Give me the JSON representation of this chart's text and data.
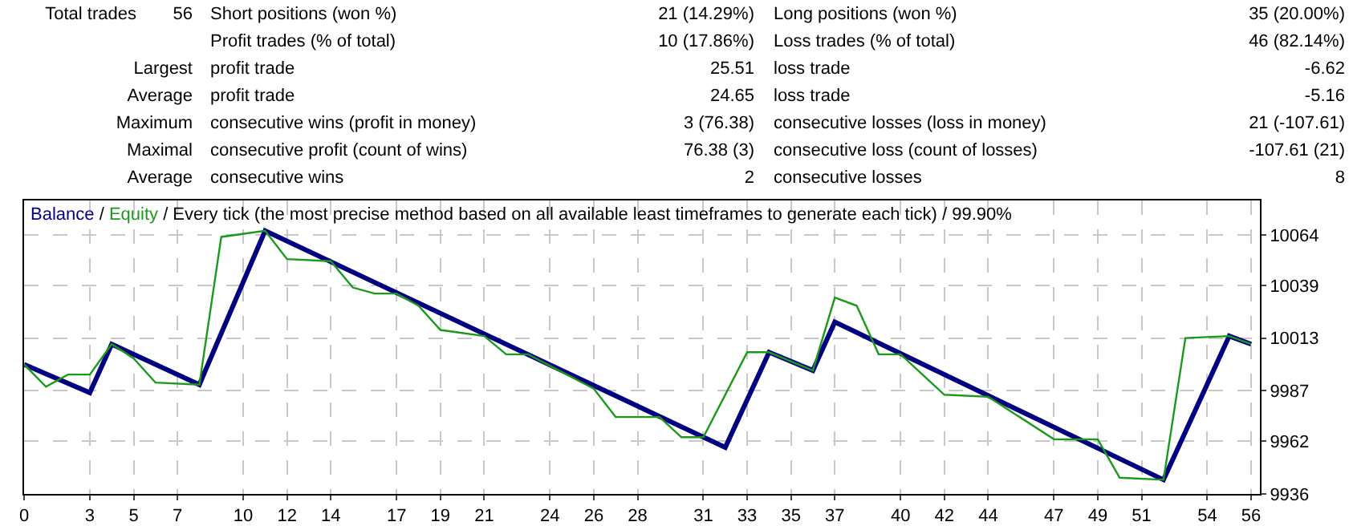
{
  "chart_data": {
    "type": "line",
    "title": "Every tick (the most precise method based on all available least timeframes to generate each tick) / 99.90%",
    "annotations": [
      "Total trades",
      "56",
      "Short positions (won %)",
      "21 (14.29%)",
      "Long positions (won %)",
      "35 (20.00%)",
      "Profit trades (% of total)",
      "10 (17.86%)",
      "Loss trades (% of total)",
      "46 (82.14%)",
      "Largest",
      "profit trade",
      "25.51",
      "loss trade",
      "-6.62",
      "Average",
      "profit trade",
      "24.65",
      "loss trade",
      "-5.16",
      "Maximum",
      "consecutive wins (profit in money)",
      "3 (76.38)",
      "consecutive losses (loss in money)",
      "21 (-107.61)",
      "Maximal",
      "consecutive profit (count of wins)",
      "76.38 (3)",
      "consecutive loss (count of losses)",
      "-107.61 (21)",
      "Average",
      "consecutive wins",
      "2",
      "consecutive losses",
      "8",
      "/"
    ],
    "series": [
      {
        "name": "Balance",
        "color": "#000080",
        "x": [
          0,
          3,
          4,
          8,
          11,
          32,
          34,
          36,
          37,
          52,
          55,
          56
        ],
        "values": [
          10000,
          9986,
          10010,
          9990,
          10066,
          9959,
          10006,
          9997,
          10021,
          9943,
          10014,
          10010
        ]
      },
      {
        "name": "Equity",
        "color": "#1a9a1a",
        "x": [
          0,
          1,
          2,
          3,
          4,
          5,
          6,
          8,
          9,
          11,
          12,
          14,
          15,
          16,
          17,
          18,
          19,
          21,
          22,
          23,
          26,
          27,
          29,
          30,
          31,
          33,
          34,
          36,
          37,
          38,
          39,
          40,
          42,
          44,
          47,
          49,
          50,
          52,
          53,
          55,
          56
        ],
        "values": [
          10000,
          9989,
          9995,
          9995,
          10010,
          10003,
          9991,
          9990,
          10063,
          10066,
          10052,
          10051,
          10038,
          10035,
          10035,
          10029,
          10017,
          10014,
          10005,
          10005,
          9988,
          9974,
          9974,
          9964,
          9964,
          10006,
          10006,
          9997,
          10033,
          10029,
          10005,
          10005,
          9985,
          9984,
          9963,
          9963,
          9944,
          9943,
          10013,
          10014,
          10010
        ]
      }
    ],
    "xlim": [
      0,
      56.4
    ],
    "xticks": [
      0,
      3,
      5,
      7,
      10,
      12,
      14,
      17,
      19,
      21,
      24,
      26,
      28,
      31,
      33,
      35,
      37,
      40,
      42,
      44,
      47,
      49,
      51,
      54,
      56
    ],
    "ylim": [
      9936,
      10081
    ],
    "yticks": [
      9936,
      9962,
      9987,
      10013,
      10039,
      10064
    ],
    "grid": true,
    "legend": "top left",
    "marker": "none",
    "line_style": "solid"
  }
}
